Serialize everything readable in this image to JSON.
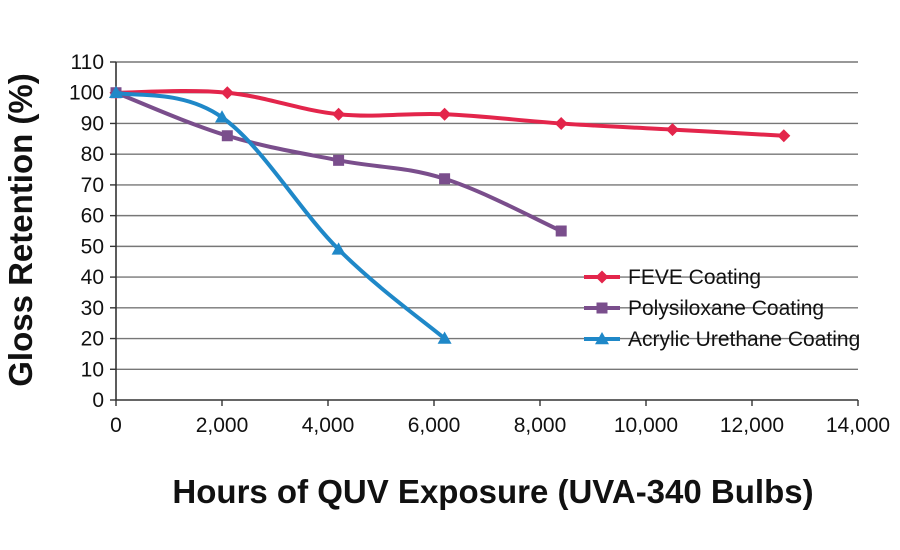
{
  "chart_data": {
    "type": "line",
    "title": "",
    "xlabel": "Hours of QUV Exposure (UVA-340 Bulbs)",
    "ylabel": "Gloss Retention (%)",
    "xlim": [
      0,
      14000
    ],
    "ylim": [
      0,
      110
    ],
    "x_ticks": [
      0,
      2000,
      4000,
      6000,
      8000,
      10000,
      12000,
      14000
    ],
    "x_tick_labels": [
      "0",
      "2,000",
      "4,000",
      "6,000",
      "8,000",
      "10,000",
      "12,000",
      "14,000"
    ],
    "y_ticks": [
      0,
      10,
      20,
      30,
      40,
      50,
      60,
      70,
      80,
      90,
      100,
      110
    ],
    "y_tick_labels": [
      "0",
      "10",
      "20",
      "30",
      "40",
      "50",
      "60",
      "70",
      "80",
      "90",
      "100",
      "110"
    ],
    "grid": true,
    "legend_position": "right",
    "series": [
      {
        "name": "FEVE Coating",
        "color": "#e3254b",
        "marker": "diamond",
        "x": [
          0,
          2100,
          4200,
          6200,
          8400,
          10500,
          12600
        ],
        "y": [
          100,
          100,
          93,
          93,
          90,
          88,
          86
        ]
      },
      {
        "name": "Polysiloxane Coating",
        "color": "#7a4e8c",
        "marker": "square",
        "x": [
          0,
          2100,
          4200,
          6200,
          8400
        ],
        "y": [
          100,
          86,
          78,
          72,
          55
        ]
      },
      {
        "name": "Acrylic Urethane Coating",
        "color": "#1f88c8",
        "marker": "triangle",
        "x": [
          0,
          2000,
          4200,
          6200
        ],
        "y": [
          100,
          92,
          49,
          20
        ]
      }
    ]
  }
}
